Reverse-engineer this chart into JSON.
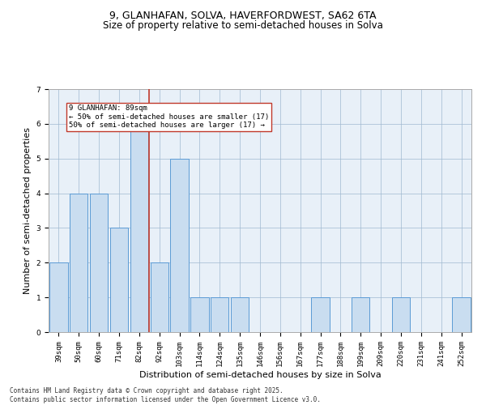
{
  "title_line1": "9, GLANHAFAN, SOLVA, HAVERFORDWEST, SA62 6TA",
  "title_line2": "Size of property relative to semi-detached houses in Solva",
  "xlabel": "Distribution of semi-detached houses by size in Solva",
  "ylabel": "Number of semi-detached properties",
  "categories": [
    "39sqm",
    "50sqm",
    "60sqm",
    "71sqm",
    "82sqm",
    "92sqm",
    "103sqm",
    "114sqm",
    "124sqm",
    "135sqm",
    "146sqm",
    "156sqm",
    "167sqm",
    "177sqm",
    "188sqm",
    "199sqm",
    "209sqm",
    "220sqm",
    "231sqm",
    "241sqm",
    "252sqm"
  ],
  "values": [
    2,
    4,
    4,
    3,
    6,
    2,
    5,
    1,
    1,
    1,
    0,
    0,
    0,
    1,
    0,
    1,
    0,
    1,
    0,
    0,
    1
  ],
  "bar_color": "#c9ddf0",
  "bar_edge_color": "#5b9bd5",
  "subject_index": 4,
  "subject_label": "9 GLANHAFAN: 89sqm",
  "annotation_line1": "← 50% of semi-detached houses are smaller (17)",
  "annotation_line2": "50% of semi-detached houses are larger (17) →",
  "vline_color": "#c0392b",
  "annotation_box_edge": "#c0392b",
  "ylim": [
    0,
    7
  ],
  "yticks": [
    0,
    1,
    2,
    3,
    4,
    5,
    6,
    7
  ],
  "footer_line1": "Contains HM Land Registry data © Crown copyright and database right 2025.",
  "footer_line2": "Contains public sector information licensed under the Open Government Licence v3.0.",
  "title_fontsize": 9,
  "subtitle_fontsize": 8.5,
  "axis_label_fontsize": 8,
  "tick_fontsize": 6.5,
  "footer_fontsize": 5.5,
  "bg_color": "#e8f0f8"
}
